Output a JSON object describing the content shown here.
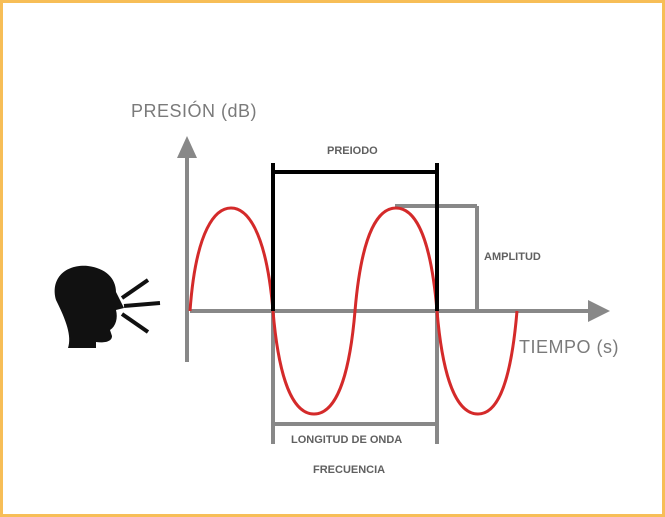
{
  "diagram": {
    "y_axis_label": "PRESIÓN (dB)",
    "x_axis_label": "TIEMPO (s)",
    "period_label": "PREIODO",
    "amplitude_label": "AMPLITUD",
    "wavelength_label": "LONGITUD DE ONDA",
    "frequency_label": "FRECUENCIA",
    "icons": [
      "speaking-head-icon",
      "sound-waves-icon"
    ],
    "colors": {
      "frame": "#f7be57",
      "axis": "#888888",
      "wave": "#d42a2a",
      "period_bracket": "#000000",
      "text": "#7a7a7a"
    }
  }
}
